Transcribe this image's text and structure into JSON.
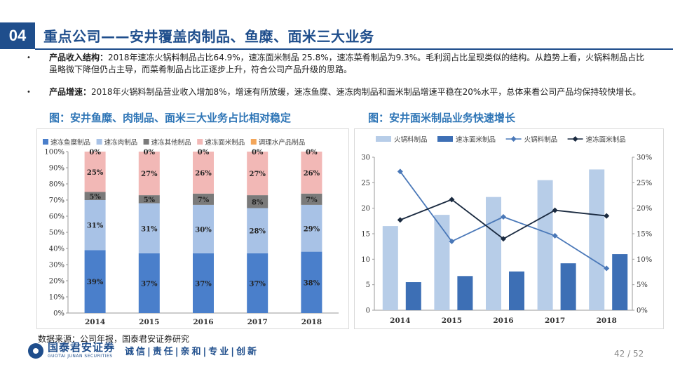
{
  "header": {
    "section_number": "04",
    "title": "重点公司——安井覆盖肉制品、鱼糜、面米三大业务"
  },
  "bullets": [
    {
      "label": "产品收入结构：",
      "text": "2018年速冻火锅料制品占比64.9%，速冻面米制品 25.8%，速冻菜肴制品为9.3%。毛利润占比呈现类似的结构。从趋势上看，火锅料制品占比虽略微下降但仍占主导，而菜肴制品占比正逐步上升，符合公司产品升级的思路。"
    },
    {
      "label": "产品增速：",
      "text": "2018年火锅料制品营业收入增加8%，增速有所放缓，速冻鱼糜、速冻肉制品和面米制品增速平稳在20%水平，总体来看公司产品均保持较快增长。"
    }
  ],
  "left_chart_title": "图：安井鱼糜、肉制品、面米三大业务占比相对稳定",
  "right_chart_title": "图：安井面米制品业务快速增长",
  "chart_data": [
    {
      "type": "bar",
      "stacked": true,
      "categories": [
        "2014",
        "2015",
        "2016",
        "2017",
        "2018"
      ],
      "y_ticks": [
        "0%",
        "10%",
        "20%",
        "30%",
        "40%",
        "50%",
        "60%",
        "70%",
        "80%",
        "90%",
        "100%"
      ],
      "ylim": [
        0,
        100
      ],
      "legend_position": "top",
      "series": [
        {
          "name": "速冻鱼糜制品",
          "color": "#4a7fcb",
          "values": [
            39,
            37,
            37,
            37,
            38
          ],
          "labels": [
            "39%",
            "37%",
            "37%",
            "37%",
            "38%"
          ]
        },
        {
          "name": "速冻肉制品",
          "color": "#a8c2e6",
          "values": [
            31,
            31,
            30,
            28,
            29
          ],
          "labels": [
            "31%",
            "31%",
            "30%",
            "28%",
            "29%"
          ]
        },
        {
          "name": "速冻其他制品",
          "color": "#7a7a7a",
          "values": [
            5,
            5,
            7,
            8,
            7
          ],
          "labels": [
            "5%",
            "5%",
            "7%",
            "8%",
            "7%"
          ]
        },
        {
          "name": "速冻面米制品",
          "color": "#f2b8b6",
          "values": [
            25,
            27,
            26,
            27,
            26
          ],
          "labels": [
            "25%",
            "27%",
            "26%",
            "27%",
            "26%"
          ]
        },
        {
          "name": "调理水产品制品",
          "color": "#f3a65a",
          "values": [
            0,
            0,
            0,
            0,
            0
          ],
          "labels": [
            "0%",
            "0%",
            "0%",
            "0%",
            "0%"
          ]
        }
      ]
    },
    {
      "type": "bar",
      "combo": "bar+line",
      "categories": [
        "2014",
        "2015",
        "2016",
        "2017",
        "2018"
      ],
      "y_left_ticks": [
        "0",
        "5",
        "10",
        "15",
        "20",
        "25",
        "30"
      ],
      "ylim_left": [
        0,
        30
      ],
      "y_right_ticks": [
        "0%",
        "5%",
        "10%",
        "15%",
        "20%",
        "25%",
        "30%"
      ],
      "ylim_right": [
        0,
        30
      ],
      "legend_position": "top",
      "series": [
        {
          "name": "火锅料制品",
          "kind": "bar",
          "axis": "left",
          "color": "#b7cde8",
          "values": [
            16.5,
            18.7,
            22.2,
            25.5,
            27.6
          ]
        },
        {
          "name": "速冻面米制品",
          "kind": "bar",
          "axis": "left",
          "color": "#3d6fb5",
          "values": [
            5.5,
            6.7,
            7.6,
            9.2,
            11.0
          ]
        },
        {
          "name": "火锅料制品",
          "kind": "line",
          "axis": "right",
          "color": "#4a78b8",
          "marker": "diamond",
          "values": [
            27.2,
            13.5,
            18.3,
            14.6,
            8.2
          ]
        },
        {
          "name": "速冻面米制品",
          "kind": "line",
          "axis": "right",
          "color": "#1a2a40",
          "marker": "diamond",
          "values": [
            17.7,
            21.7,
            14.0,
            19.6,
            18.5
          ]
        }
      ]
    }
  ],
  "footer": {
    "source": "数据来源：公司年报，国泰君安证券研究",
    "logo_cn": "国泰君安证券",
    "logo_en": "GUOTAI JUNAN SECURITIES",
    "slogan": "诚信|责任|亲和|专业|创新",
    "page": "42 / 52"
  },
  "colors": {
    "brand": "#1f4e8c",
    "chart_title": "#2e75b6"
  }
}
